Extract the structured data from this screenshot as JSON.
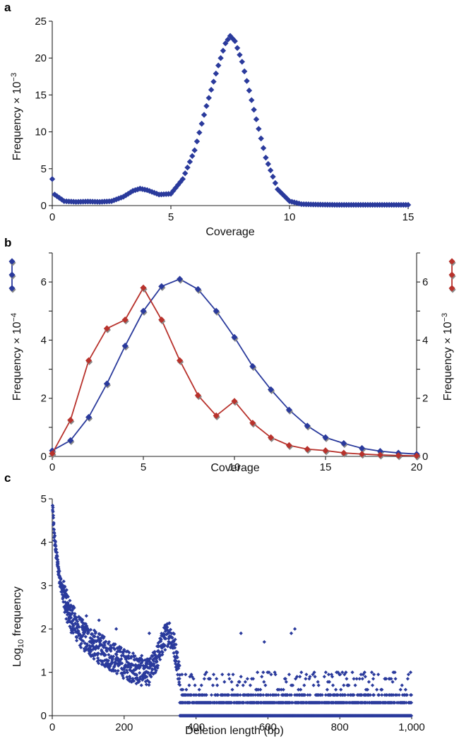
{
  "chart_data": [
    {
      "panel": "a",
      "type": "scatter",
      "xlabel": "Coverage",
      "ylabel": "Frequency × 10",
      "ylabel_exp": "−3",
      "xlim": [
        0,
        15
      ],
      "ylim": [
        0,
        25
      ],
      "xticks": [
        0,
        5,
        10,
        15
      ],
      "yticks": [
        0,
        5,
        10,
        15,
        20,
        25
      ],
      "marker_color": "#2a3a9c",
      "curve_points": [
        [
          0,
          3.6
        ],
        [
          0.1,
          1.5
        ],
        [
          0.5,
          0.6
        ],
        [
          1.0,
          0.5
        ],
        [
          1.5,
          0.55
        ],
        [
          2.0,
          0.5
        ],
        [
          2.5,
          0.6
        ],
        [
          3.0,
          1.2
        ],
        [
          3.4,
          2.0
        ],
        [
          3.7,
          2.3
        ],
        [
          4.0,
          2.1
        ],
        [
          4.5,
          1.5
        ],
        [
          5.0,
          1.6
        ],
        [
          5.5,
          3.6
        ],
        [
          6.0,
          7.5
        ],
        [
          6.5,
          13.5
        ],
        [
          7.0,
          19.0
        ],
        [
          7.3,
          22.0
        ],
        [
          7.5,
          23.0
        ],
        [
          7.7,
          22.3
        ],
        [
          8.0,
          19.5
        ],
        [
          8.5,
          13.0
        ],
        [
          9.0,
          6.5
        ],
        [
          9.5,
          2.2
        ],
        [
          10.0,
          0.6
        ],
        [
          10.5,
          0.2
        ],
        [
          11.0,
          0.15
        ],
        [
          12.0,
          0.1
        ],
        [
          13.0,
          0.1
        ],
        [
          14.0,
          0.1
        ],
        [
          15.0,
          0.1
        ]
      ]
    },
    {
      "panel": "b",
      "type": "line",
      "xlabel": "Coverage",
      "ylabel_left": "Frequency × 10",
      "ylabel_left_exp": "−4",
      "ylabel_right": "Frequency × 10",
      "ylabel_right_exp": "−3",
      "xlim": [
        0,
        20
      ],
      "ylim": [
        0,
        7
      ],
      "xticks": [
        0,
        5,
        10,
        15,
        20
      ],
      "yticks_labeled": [
        0,
        2,
        4,
        6
      ],
      "yticks_minor": [
        1,
        3,
        5,
        7
      ],
      "x": [
        0,
        1,
        2,
        3,
        4,
        5,
        6,
        7,
        8,
        9,
        10,
        11,
        12,
        13,
        14,
        15,
        16,
        17,
        18,
        19,
        20
      ],
      "series": [
        {
          "axis": "left",
          "color": "#2a3a9c",
          "values": [
            0.2,
            0.55,
            1.35,
            2.5,
            3.8,
            5.0,
            5.85,
            6.1,
            5.75,
            5.0,
            4.1,
            3.1,
            2.3,
            1.6,
            1.05,
            0.65,
            0.45,
            0.28,
            0.18,
            0.12,
            0.08
          ]
        },
        {
          "axis": "right",
          "color": "#b8322c",
          "values": [
            0.1,
            1.25,
            3.3,
            4.4,
            4.7,
            5.8,
            4.7,
            3.3,
            2.1,
            1.4,
            1.9,
            1.15,
            0.65,
            0.38,
            0.25,
            0.2,
            0.12,
            0.08,
            0.05,
            0.03,
            0.02
          ]
        }
      ]
    },
    {
      "panel": "c",
      "type": "scatter",
      "xlabel": "Deletion length (bp)",
      "ylabel": "Log",
      "ylabel_sub": "10",
      "ylabel_rest": " frequency",
      "xlim": [
        0,
        1000
      ],
      "ylim": [
        0,
        5
      ],
      "xticks": [
        0,
        200,
        400,
        600,
        800,
        1000
      ],
      "xtick_labels": [
        "0",
        "200",
        "400",
        "600",
        "800",
        "1,000"
      ],
      "yticks": [
        0,
        1,
        2,
        3,
        4,
        5
      ],
      "marker_color": "#2a3a9c",
      "trend_points": [
        [
          1,
          4.8
        ],
        [
          5,
          4.2
        ],
        [
          10,
          3.8
        ],
        [
          20,
          3.2
        ],
        [
          30,
          2.8
        ],
        [
          50,
          2.3
        ],
        [
          80,
          1.9
        ],
        [
          120,
          1.6
        ],
        [
          160,
          1.4
        ],
        [
          200,
          1.2
        ],
        [
          240,
          1.05
        ],
        [
          270,
          1.0
        ],
        [
          290,
          1.3
        ],
        [
          310,
          1.75
        ],
        [
          325,
          1.95
        ],
        [
          340,
          1.6
        ],
        [
          355,
          0.9
        ],
        [
          380,
          0.6
        ],
        [
          450,
          0.5
        ],
        [
          600,
          0.45
        ],
        [
          800,
          0.4
        ],
        [
          1000,
          0.35
        ]
      ],
      "outliers": [
        [
          95,
          2.3
        ],
        [
          130,
          2.2
        ],
        [
          178,
          2.0
        ],
        [
          525,
          1.9
        ],
        [
          590,
          1.7
        ],
        [
          665,
          1.9
        ],
        [
          675,
          2.0
        ],
        [
          270,
          1.9
        ]
      ],
      "discrete_levels": [
        0,
        0.3,
        0.477,
        0.6,
        0.7,
        0.78,
        0.85,
        0.9,
        0.95,
        1.0
      ]
    }
  ]
}
